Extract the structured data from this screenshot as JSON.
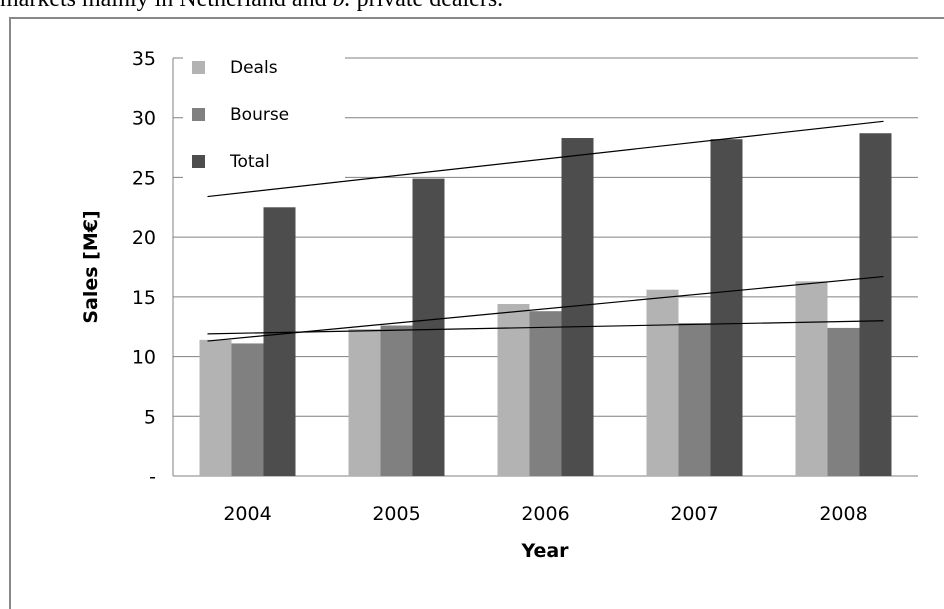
{
  "caption": {
    "text_before": "markets mainly in Netherland and ",
    "text_italic": "b.",
    "text_after": " private dealers."
  },
  "chart_data": {
    "type": "bar",
    "categories": [
      "2004",
      "2005",
      "2006",
      "2007",
      "2008"
    ],
    "series": [
      {
        "name": "Deals",
        "values": [
          11.4,
          12.3,
          14.4,
          15.6,
          16.3
        ],
        "color": "#b3b3b3"
      },
      {
        "name": "Bourse",
        "values": [
          11.1,
          12.6,
          13.8,
          12.8,
          12.4
        ],
        "color": "#808080"
      },
      {
        "name": "Total",
        "values": [
          22.5,
          24.9,
          28.3,
          28.2,
          28.7
        ],
        "color": "#4d4d4d"
      }
    ],
    "trendlines": [
      {
        "series": "Total",
        "start": 23.4,
        "end": 29.7
      },
      {
        "series": "Deals",
        "start": 11.3,
        "end": 16.7
      },
      {
        "series": "Bourse",
        "start": 11.9,
        "end": 13.0
      }
    ],
    "ytick_labels": [
      "-",
      "5",
      "10",
      "15",
      "20",
      "25",
      "30",
      "35"
    ],
    "xlabel": "Year",
    "ylabel": "Sales [M€]",
    "ylim": [
      0,
      35
    ],
    "grid": true,
    "legend_position": "top-left"
  }
}
